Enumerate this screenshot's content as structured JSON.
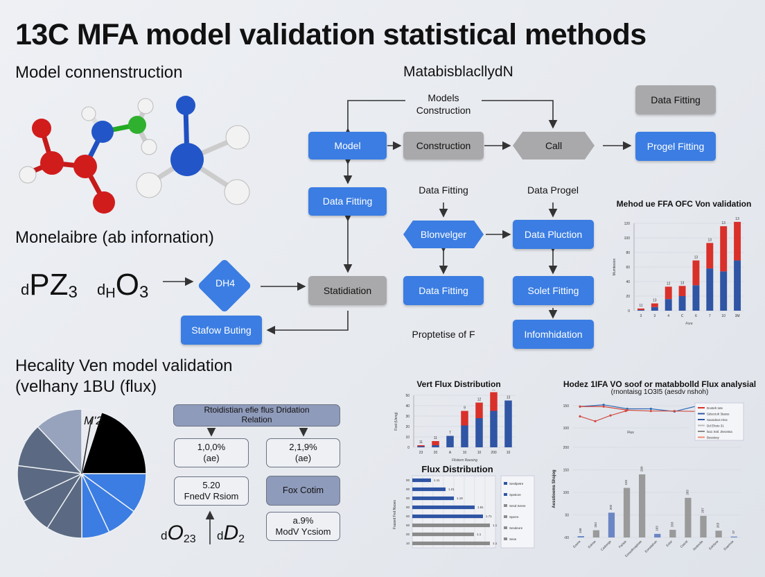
{
  "header": {
    "title": "13C MFA model validation  statistical methods",
    "section_model": "Model connenstruction",
    "section_info": "Monelaibre (ab infornation)",
    "section_validation_line1": "Hecality Ven model validation",
    "section_validation_line2": "(velhany 1BU (flux)",
    "flow_title": "MatabisblacllydN"
  },
  "formulas": {
    "f1_prefix": "d",
    "f1_main": "PZ",
    "f1_sub": "3",
    "f2_prefix": "d",
    "f2_sub_h": "H",
    "f2_main": "O",
    "f2_sub": "3",
    "f3_prefix": "d",
    "f3_main": "O",
    "f3_sub": "23",
    "f4_prefix": "d",
    "f4_main": "D",
    "f4_sub": "2",
    "diamond": "DͰA₄",
    "diamond_label": "DH4",
    "pie_label": "M'2"
  },
  "flow": {
    "models_construction": "Models\nConstruction",
    "model": "Model",
    "construction": "Construction",
    "call": "Call",
    "data_fitting_top": "Data Fitting",
    "progel_fitting": "Progel Fitting",
    "data_fitting_left": "Data Fitting",
    "data_fitting_text": "Data Fitting",
    "data_progel_text": "Data Progel",
    "blonvelger": "Blonvelger",
    "data_pluction": "Data Pluction",
    "statidiation": "Statidiation",
    "data_fitting_mid": "Data Fitting",
    "solet_fitting": "Solet Fitting",
    "proptetise": "Proptetise of F",
    "infomhidation": "Infomhidation",
    "stafow_buting": "Stafow Buting"
  },
  "validation_cards": {
    "header": "Rtoidistian efie flus Dridation\nRelation",
    "c1": "1,0,0%\n(ae)",
    "c2": "2,1,9%\n(ae)",
    "c3": "5.20\nFnedV Rsiom",
    "c4": "Fox Cotim",
    "c5": "a.9%\nModV Ycsiom"
  },
  "colors": {
    "blue": "#3b7de2",
    "gray": "#a9a9ab",
    "red": "#d9302a",
    "navy": "#2f55a4",
    "slate": "#5b6a82",
    "light_slate": "#97a3bd"
  },
  "chart_data": [
    {
      "id": "method_chart",
      "type": "bar",
      "stacked": true,
      "title": "Mehod ue FFA OFC Von validation",
      "ylabel": "Mumtesion",
      "xlabel": "Fore",
      "categories": [
        "3",
        "3",
        "4",
        "C",
        "6",
        "7",
        "10",
        "3M"
      ],
      "ylim": [
        0,
        120
      ],
      "yticks": [
        "0",
        "20",
        "40",
        "60",
        "80",
        "100",
        "120"
      ],
      "series": [
        {
          "color": "#2f55a4",
          "values": [
            1,
            5,
            16,
            20,
            35,
            58,
            54,
            69
          ]
        },
        {
          "color": "#d9302a",
          "values": [
            2,
            5,
            17,
            14,
            34,
            35,
            62,
            53
          ]
        }
      ],
      "data_labels": [
        "11",
        "13",
        "12",
        "13",
        "13",
        "13",
        "13",
        "13"
      ],
      "grid": true
    },
    {
      "id": "vert_flux_chart",
      "type": "bar",
      "stacked": true,
      "title": "Vert Flux Distribution",
      "ylabel": "Fost (Ueng)",
      "xlabel": "Flistiem Reesing",
      "categories": [
        "23",
        "20",
        "A",
        "10",
        "10",
        "200",
        "10"
      ],
      "ylim": [
        0,
        50
      ],
      "yticks": [
        "0",
        "10",
        "20",
        "30",
        "40",
        "50"
      ],
      "series": [
        {
          "color": "#2f55a4",
          "values": [
            1,
            2,
            11,
            21,
            28,
            35,
            45
          ]
        },
        {
          "color": "#d9302a",
          "values": [
            1,
            4,
            0,
            14,
            15,
            18,
            0
          ]
        }
      ],
      "data_labels": [
        "11",
        "11",
        "T",
        "9",
        "12",
        "13",
        "13"
      ],
      "grid": true
    },
    {
      "id": "flux_distribution_chart",
      "type": "bar",
      "orientation": "horizontal",
      "title": "Flux Distribution",
      "ylabel": "Fsased Fed Nsoes",
      "categories": [
        "00",
        "00",
        "00",
        "00",
        "00",
        "00",
        "00",
        "10"
      ],
      "xlim": [
        0,
        120
      ],
      "values": [
        27,
        48,
        60,
        90,
        102,
        112,
        89,
        112
      ],
      "colors": [
        "#2f55a4",
        "#2f55a4",
        "#2f55a4",
        "#2f55a4",
        "#2f55a4",
        "#8a8a8a",
        "#8a8a8a",
        "#8a8a8a"
      ],
      "data_labels": [
        "1.11",
        "1.21",
        "1.18",
        "1.81",
        "1.71",
        "1.1",
        "1.1",
        "1.1"
      ],
      "legend": [
        "Sestlpetre",
        "Spetiore",
        "Sesd Seree",
        "Sperre",
        "Sesdeore",
        "Sese"
      ],
      "legend_position": "right",
      "grid": true
    },
    {
      "id": "hodez_chart",
      "type": "bar+line",
      "title": "Hodez 1IFA VO soof or matabbolld Flux analysial",
      "subtitle": "(rnontaisg 1O3I5 (aesdv nshoh)",
      "ylabel": "Aesstioems Shsjog",
      "line_xlabel": "Flux",
      "categories": [
        "Eoone",
        "Eolnse",
        "Caslonge",
        "Farlsie",
        "Eonsolhosplose",
        "Eonsdahon",
        "Eolor",
        "Casrst",
        "Ssslordie",
        "Eolclsne",
        "Eoarinoe"
      ],
      "ylim": [
        0,
        200
      ],
      "yticks": [
        "-00",
        "50",
        "100",
        "150",
        "200"
      ],
      "line_yticks": [
        "150",
        "100"
      ],
      "values": [
        3,
        16,
        55,
        110,
        140,
        8,
        17,
        88,
        48,
        15,
        2
      ],
      "colors": [
        "#6b86c4",
        "#9a9a9a",
        "#6b86c4",
        "#9a9a9a",
        "#9a9a9a",
        "#6b86c4",
        "#9a9a9a",
        "#9a9a9a",
        "#9a9a9a",
        "#9a9a9a",
        "#6b86c4"
      ],
      "data_labels": [
        "168",
        "263",
        "202",
        "103",
        "200",
        "103",
        "203",
        "203",
        "207",
        "263",
        "37"
      ],
      "lines": [
        {
          "color": "#2f6ab4",
          "values": [
            148,
            152,
            143,
            143,
            137,
            150,
            149
          ]
        },
        {
          "color": "#d24a40",
          "values": [
            148,
            148,
            140,
            138,
            138,
            137,
            136
          ]
        },
        {
          "color": "#d24a40",
          "values": [
            126,
            115,
            128,
            138
          ]
        }
      ],
      "legend": [
        "Dosteh tote",
        "Sdscciuh 3tasss",
        "Saosdsos Hiss",
        "Dd Ehsto 31",
        "lsa1 Sstl. Zteostsa",
        "Bssstssy"
      ],
      "legend_position": "top-right",
      "grid": true
    },
    {
      "id": "pie_chart",
      "type": "pie",
      "slices": [
        {
          "color": "#e9ebf0",
          "value": 5
        },
        {
          "color": "#000000",
          "value": 20
        },
        {
          "color": "#3b7de2",
          "value": 10
        },
        {
          "color": "#3b7de2",
          "value": 8
        },
        {
          "color": "#3b7de2",
          "value": 7
        },
        {
          "color": "#5b6a82",
          "value": 9
        },
        {
          "color": "#5b6a82",
          "value": 9
        },
        {
          "color": "#5b6a82",
          "value": 9
        },
        {
          "color": "#5b6a82",
          "value": 11
        },
        {
          "color": "#97a3bd",
          "value": 12
        }
      ]
    }
  ]
}
